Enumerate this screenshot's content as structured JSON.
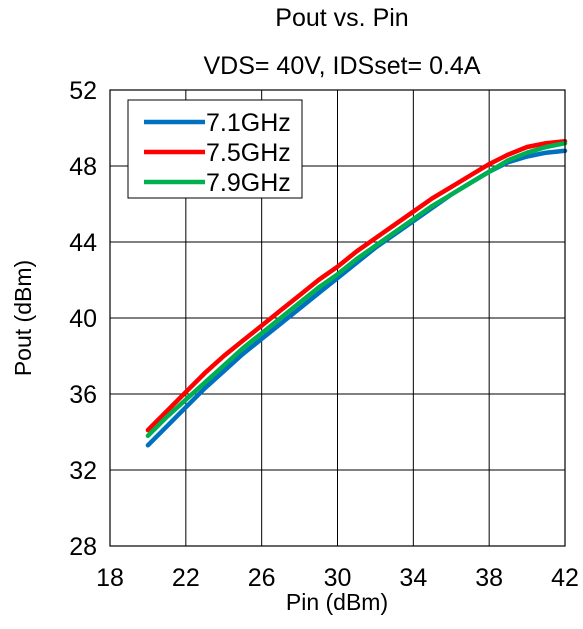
{
  "chart_data": {
    "type": "line",
    "title": "Pout vs. Pin",
    "subtitle": "VDS= 40V, IDSset= 0.4A",
    "xlabel": "Pin (dBm)",
    "ylabel": "Pout (dBm)",
    "xlim": [
      18,
      42
    ],
    "ylim": [
      28,
      52
    ],
    "xticks": [
      18,
      22,
      26,
      30,
      34,
      38,
      42
    ],
    "yticks": [
      28,
      32,
      36,
      40,
      44,
      48,
      52
    ],
    "grid": true,
    "legend_position": "top-left",
    "series": [
      {
        "name": "7.1GHz",
        "color": "#0070C0",
        "x": [
          20,
          21,
          22,
          23,
          24,
          25,
          26,
          27,
          28,
          29,
          30,
          31,
          32,
          33,
          34,
          35,
          36,
          37,
          38,
          39,
          40,
          41,
          42
        ],
        "y": [
          33.3,
          34.3,
          35.3,
          36.3,
          37.2,
          38.1,
          38.9,
          39.7,
          40.5,
          41.3,
          42.1,
          42.9,
          43.7,
          44.4,
          45.1,
          45.8,
          46.5,
          47.1,
          47.7,
          48.2,
          48.5,
          48.7,
          48.8
        ]
      },
      {
        "name": "7.5GHz",
        "color": "#FF0000",
        "x": [
          20,
          21,
          22,
          23,
          24,
          25,
          26,
          27,
          28,
          29,
          30,
          31,
          32,
          33,
          34,
          35,
          36,
          37,
          38,
          39,
          40,
          41,
          42
        ],
        "y": [
          34.1,
          35.1,
          36.1,
          37.1,
          38.0,
          38.8,
          39.6,
          40.4,
          41.2,
          42.0,
          42.7,
          43.5,
          44.2,
          44.9,
          45.6,
          46.3,
          46.9,
          47.5,
          48.1,
          48.6,
          49.0,
          49.2,
          49.3
        ]
      },
      {
        "name": "7.9GHz",
        "color": "#00B050",
        "x": [
          20,
          21,
          22,
          23,
          24,
          25,
          26,
          27,
          28,
          29,
          30,
          31,
          32,
          33,
          34,
          35,
          36,
          37,
          38,
          39,
          40,
          41,
          42
        ],
        "y": [
          33.8,
          34.8,
          35.7,
          36.6,
          37.5,
          38.4,
          39.2,
          40.0,
          40.8,
          41.6,
          42.3,
          43.1,
          43.8,
          44.5,
          45.2,
          45.9,
          46.5,
          47.1,
          47.7,
          48.3,
          48.7,
          49.0,
          49.2
        ]
      }
    ]
  }
}
